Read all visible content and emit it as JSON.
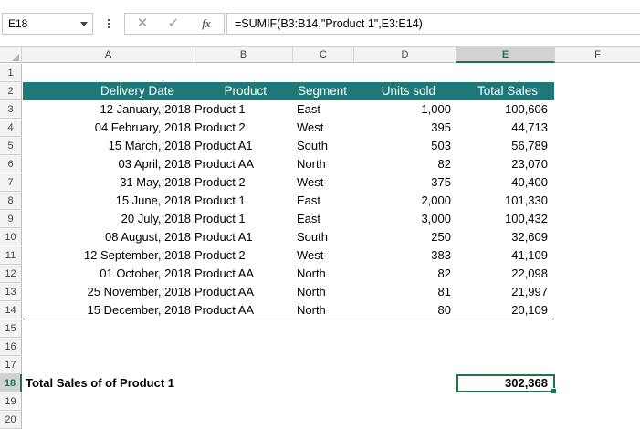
{
  "formula_bar": {
    "name_box": "E18",
    "cancel_icon": "✕",
    "enter_icon": "✓",
    "function_icon": "fx",
    "formula": "=SUMIF(B3:B14,\"Product 1\",E3:E14)"
  },
  "columns": [
    "A",
    "B",
    "C",
    "D",
    "E",
    "F"
  ],
  "selected_column": "E",
  "row_numbers": [
    "1",
    "2",
    "3",
    "4",
    "5",
    "6",
    "7",
    "8",
    "9",
    "10",
    "11",
    "12",
    "13",
    "14",
    "15",
    "16",
    "17",
    "18",
    "19",
    "20"
  ],
  "selected_row": "18",
  "table": {
    "header": {
      "delivery_date": "Delivery Date",
      "product": "Product",
      "segment": "Segment",
      "units_sold": "Units sold",
      "total_sales": "Total Sales"
    },
    "header_color": "#1f7878",
    "rows": [
      {
        "date": "12 January, 2018",
        "product": "Product 1",
        "segment": "East",
        "units": "1,000",
        "sales": "100,606"
      },
      {
        "date": "04 February, 2018",
        "product": "Product 2",
        "segment": "West",
        "units": "395",
        "sales": "44,713"
      },
      {
        "date": "15 March, 2018",
        "product": "Product A1",
        "segment": "South",
        "units": "503",
        "sales": "56,789"
      },
      {
        "date": "03 April, 2018",
        "product": "Product AA",
        "segment": "North",
        "units": "82",
        "sales": "23,070"
      },
      {
        "date": "31 May, 2018",
        "product": "Product 2",
        "segment": "West",
        "units": "375",
        "sales": "40,400"
      },
      {
        "date": "15 June, 2018",
        "product": "Product 1",
        "segment": "East",
        "units": "2,000",
        "sales": "101,330"
      },
      {
        "date": "20 July, 2018",
        "product": "Product 1",
        "segment": "East",
        "units": "3,000",
        "sales": "100,432"
      },
      {
        "date": "08 August, 2018",
        "product": "Product A1",
        "segment": "South",
        "units": "250",
        "sales": "32,609"
      },
      {
        "date": "12 September, 2018",
        "product": "Product 2",
        "segment": "West",
        "units": "383",
        "sales": "41,109"
      },
      {
        "date": "01 October, 2018",
        "product": "Product AA",
        "segment": "North",
        "units": "82",
        "sales": "22,098"
      },
      {
        "date": "25 November, 2018",
        "product": "Product AA",
        "segment": "North",
        "units": "81",
        "sales": "21,997"
      },
      {
        "date": "15 December, 2018",
        "product": "Product AA",
        "segment": "North",
        "units": "80",
        "sales": "20,109"
      }
    ]
  },
  "summary": {
    "label": "Total Sales of of Product 1",
    "value": "302,368"
  },
  "accent_color": "#217346"
}
